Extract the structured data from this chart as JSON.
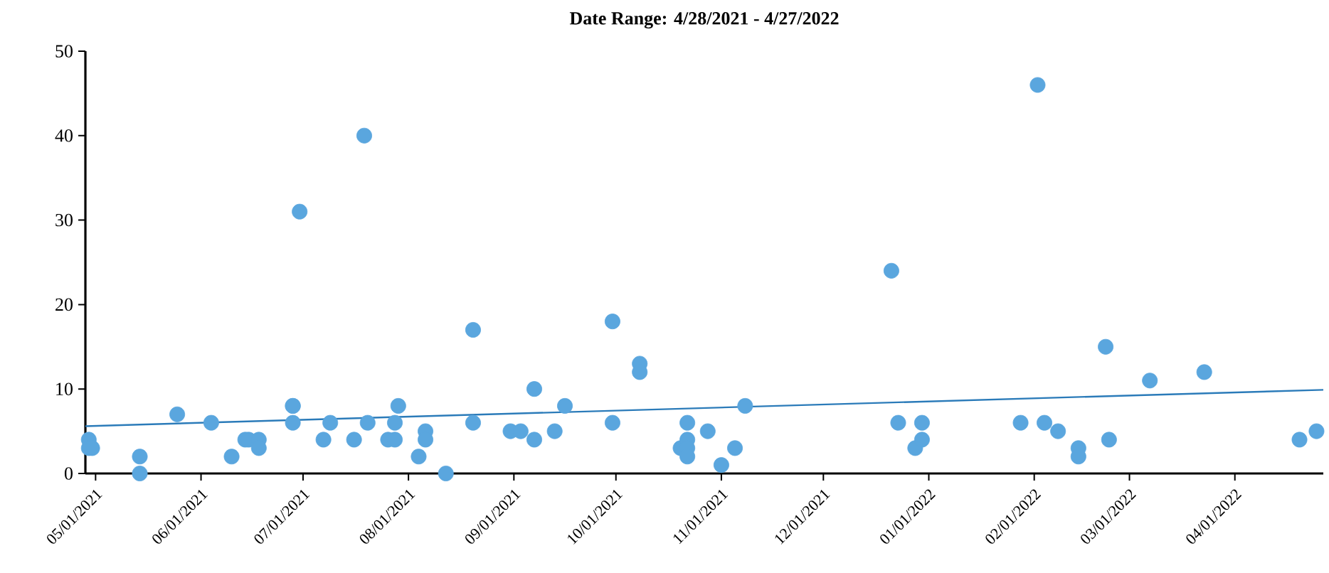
{
  "chart_data": {
    "type": "scatter",
    "title": "Date Range: 4/28/2021 - 4/27/2022",
    "xlim": [
      "2021-04-28",
      "2022-04-27"
    ],
    "xticks": [
      {
        "value": "2021-05-01",
        "label": "05/01/2021"
      },
      {
        "value": "2021-06-01",
        "label": "06/01/2021"
      },
      {
        "value": "2021-07-01",
        "label": "07/01/2021"
      },
      {
        "value": "2021-08-01",
        "label": "08/01/2021"
      },
      {
        "value": "2021-09-01",
        "label": "09/01/2021"
      },
      {
        "value": "2021-10-01",
        "label": "10/01/2021"
      },
      {
        "value": "2021-11-01",
        "label": "11/01/2021"
      },
      {
        "value": "2021-12-01",
        "label": "12/01/2021"
      },
      {
        "value": "2022-01-01",
        "label": "01/01/2022"
      },
      {
        "value": "2022-02-01",
        "label": "02/01/2022"
      },
      {
        "value": "2022-03-01",
        "label": "03/01/2022"
      },
      {
        "value": "2022-04-01",
        "label": "04/01/2022"
      }
    ],
    "ylim": [
      0,
      50
    ],
    "yticks": [
      0,
      10,
      20,
      30,
      40,
      50
    ],
    "grid": false,
    "series": [
      {
        "marker": "circle",
        "color": "#5aa6de",
        "x": [
          "2021-04-29",
          "2021-04-29",
          "2021-04-30",
          "2021-05-14",
          "2021-05-14",
          "2021-05-25",
          "2021-06-04",
          "2021-06-10",
          "2021-06-14",
          "2021-06-15",
          "2021-06-18",
          "2021-06-18",
          "2021-06-28",
          "2021-06-28",
          "2021-06-28",
          "2021-06-30",
          "2021-07-07",
          "2021-07-09",
          "2021-07-16",
          "2021-07-19",
          "2021-07-20",
          "2021-07-26",
          "2021-07-28",
          "2021-07-28",
          "2021-07-29",
          "2021-08-04",
          "2021-08-06",
          "2021-08-06",
          "2021-08-12",
          "2021-08-20",
          "2021-08-20",
          "2021-08-31",
          "2021-09-03",
          "2021-09-07",
          "2021-09-07",
          "2021-09-13",
          "2021-09-16",
          "2021-09-30",
          "2021-09-30",
          "2021-10-08",
          "2021-10-08",
          "2021-10-20",
          "2021-10-22",
          "2021-10-22",
          "2021-10-22",
          "2021-10-22",
          "2021-10-28",
          "2021-11-01",
          "2021-11-05",
          "2021-11-08",
          "2021-12-21",
          "2021-12-23",
          "2021-12-28",
          "2021-12-30",
          "2021-12-30",
          "2022-01-28",
          "2022-02-02",
          "2022-02-04",
          "2022-02-08",
          "2022-02-14",
          "2022-02-14",
          "2022-02-22",
          "2022-02-23",
          "2022-03-07",
          "2022-03-23",
          "2022-04-20",
          "2022-04-25"
        ],
        "values": [
          4,
          3,
          3,
          2,
          0,
          7,
          6,
          2,
          4,
          4,
          4,
          3,
          8,
          8,
          6,
          31,
          4,
          6,
          4,
          40,
          6,
          4,
          4,
          6,
          8,
          2,
          5,
          4,
          0,
          17,
          6,
          5,
          5,
          10,
          4,
          5,
          8,
          18,
          6,
          13,
          12,
          3,
          6,
          4,
          3,
          2,
          5,
          1,
          3,
          8,
          24,
          6,
          3,
          4,
          6,
          6,
          46,
          6,
          5,
          3,
          2,
          15,
          4,
          11,
          12,
          4,
          5
        ]
      },
      {
        "type": "line",
        "marker": "none",
        "line_style": "solid",
        "color": "#2b7bb9",
        "x": [
          "2021-04-28",
          "2022-04-27"
        ],
        "values": [
          5.6,
          9.9
        ]
      }
    ]
  }
}
